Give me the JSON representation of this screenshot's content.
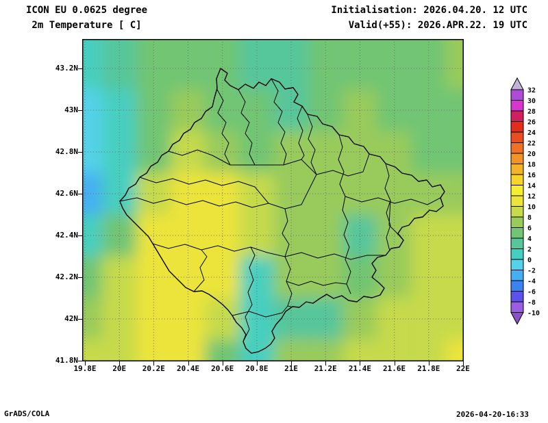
{
  "header": {
    "model": "ICON EU 0.0625 degree",
    "variable": " 2m Temperature [ C]",
    "initialisation": "Initialisation: 2026.04.20. 12 UTC",
    "valid": "Valid(+55): 2026.APR.22. 19 UTC"
  },
  "footer": {
    "left": "GrADS/COLA",
    "right": "2026-04-20-16:33"
  },
  "axes": {
    "y_labels": [
      "43.2N",
      "43N",
      "42.8N",
      "42.6N",
      "42.4N",
      "42.2N",
      "42N",
      "41.8N"
    ],
    "x_labels": [
      "19.8E",
      "20E",
      "20.2E",
      "20.4E",
      "20.6E",
      "20.8E",
      "21E",
      "21.2E",
      "21.4E",
      "21.6E",
      "21.8E",
      "22E"
    ]
  },
  "colorbar": {
    "labels": [
      "32",
      "30",
      "28",
      "26",
      "24",
      "22",
      "20",
      "18",
      "16",
      "14",
      "12",
      "10",
      "8",
      "6",
      "4",
      "2",
      "0",
      "-2",
      "-4",
      "-6",
      "-8",
      "-10"
    ],
    "colors_cold_to_hot": [
      "#9a5fe0",
      "#5a52ea",
      "#3b82f2",
      "#46aef2",
      "#55d2ea",
      "#46cfc0",
      "#57c69b",
      "#71c573",
      "#99cb5c",
      "#c6da4b",
      "#ece43a",
      "#f6ef31",
      "#f5d42e",
      "#f3b32b",
      "#f09328",
      "#ed7225",
      "#e94e21",
      "#e22c1e",
      "#d01f5e",
      "#d436cf",
      "#ae4cd8"
    ],
    "under_color": "#8b4fc8",
    "over_color": "#c3b2d8"
  },
  "chart_data": {
    "type": "heatmap",
    "title": "ICON EU 0.0625 degree - 2m Temperature [ C]",
    "units": "C",
    "x_lon": [
      19.8,
      20.0,
      20.2,
      20.4,
      20.6,
      20.8,
      21.0,
      21.2,
      21.4,
      21.6,
      21.8,
      22.0
    ],
    "y_lat": [
      43.2,
      43.0,
      42.8,
      42.6,
      42.4,
      42.2,
      42.0,
      41.8
    ],
    "values": [
      [
        1,
        2,
        4,
        4,
        4,
        2,
        2,
        4,
        4,
        4,
        4,
        6
      ],
      [
        -1,
        1,
        4,
        6,
        5,
        4,
        3,
        4,
        6,
        4,
        4,
        4
      ],
      [
        -2,
        0,
        5,
        8,
        6,
        5,
        6,
        6,
        6,
        6,
        4,
        4
      ],
      [
        -3,
        0,
        8,
        10,
        10,
        8,
        6,
        6,
        6,
        6,
        7,
        6
      ],
      [
        1,
        4,
        10,
        11,
        10,
        8,
        6,
        6,
        2,
        6,
        8,
        8
      ],
      [
        4,
        8,
        11,
        11,
        10,
        1,
        6,
        6,
        4,
        6,
        8,
        8
      ],
      [
        6,
        9,
        10,
        11,
        8,
        0,
        2,
        3,
        6,
        8,
        8,
        9
      ],
      [
        8,
        9,
        10,
        10,
        5,
        1,
        6,
        6,
        8,
        8,
        9,
        10
      ]
    ],
    "levels_c": [
      -10,
      -8,
      -6,
      -4,
      -2,
      0,
      2,
      4,
      6,
      8,
      10,
      12,
      14,
      16,
      18,
      20,
      22,
      24,
      26,
      28,
      30,
      32
    ],
    "xlim": [
      19.8,
      22.0
    ],
    "ylim": [
      41.8,
      43.2
    ],
    "grid": "dotted",
    "legend_position": "right"
  }
}
